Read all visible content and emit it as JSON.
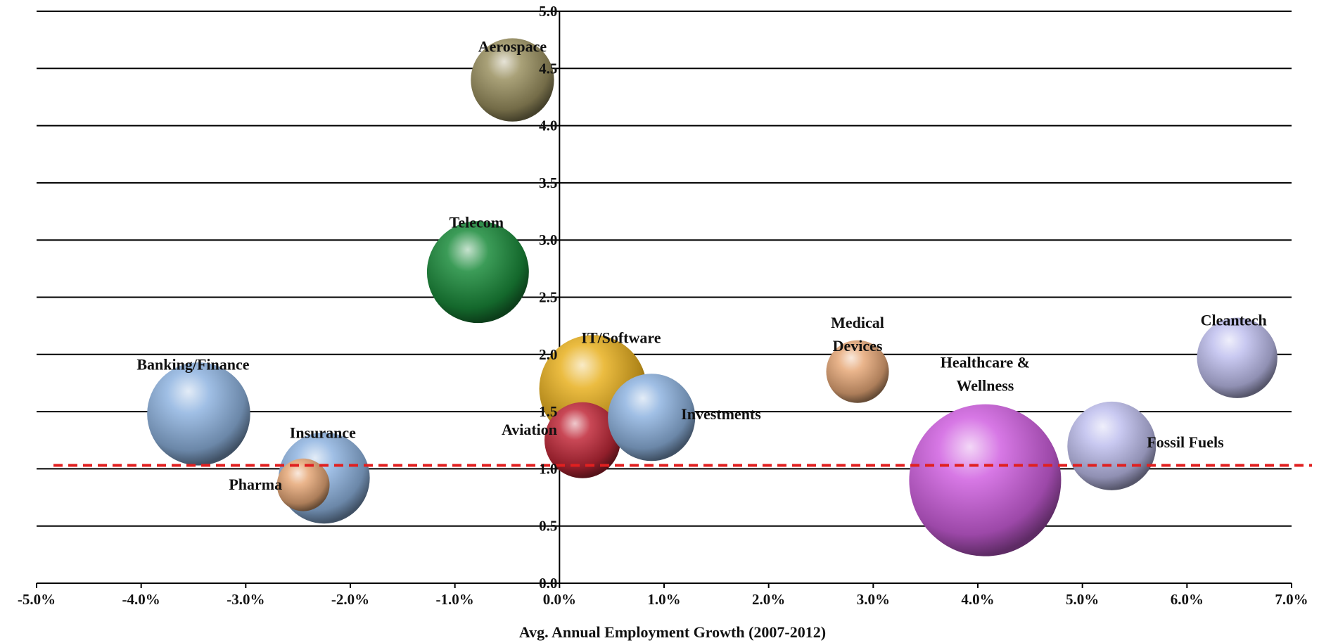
{
  "chart_data": {
    "type": "bubble",
    "title": "",
    "xlabel": "Avg. Annual Employment Growth (2007-2012)",
    "ylabel": "",
    "xlim": [
      -5.0,
      7.0
    ],
    "ylim": [
      0.0,
      5.0
    ],
    "x_ticks": [
      "-5.0%",
      "-4.0%",
      "-3.0%",
      "-2.0%",
      "-1.0%",
      "0.0%",
      "1.0%",
      "2.0%",
      "3.0%",
      "4.0%",
      "5.0%",
      "6.0%",
      "7.0%"
    ],
    "y_ticks": [
      "0.0",
      "0.5",
      "1.0",
      "1.5",
      "2.0",
      "2.5",
      "3.0",
      "3.5",
      "4.0",
      "4.5",
      "5.0"
    ],
    "grid": "horizontal",
    "reference_line": {
      "y": 1.03,
      "style": "dashed",
      "color": "#e02020"
    },
    "points": [
      {
        "name": "Aerospace",
        "x": -0.45,
        "y": 4.4,
        "size": 0.3,
        "color": "#9a9060"
      },
      {
        "name": "Telecom",
        "x": -0.78,
        "y": 2.72,
        "size": 0.45,
        "color": "#1a8a3a"
      },
      {
        "name": "Banking/Finance",
        "x": -3.45,
        "y": 1.48,
        "size": 0.46,
        "color": "#8fb4e0"
      },
      {
        "name": "Insurance",
        "x": -2.25,
        "y": 0.92,
        "size": 0.36,
        "color": "#8fb4e0"
      },
      {
        "name": "Pharma",
        "x": -2.45,
        "y": 0.86,
        "size": 0.12,
        "color": "#e6a878"
      },
      {
        "name": "IT/Software",
        "x": 0.32,
        "y": 1.7,
        "size": 0.5,
        "color": "#e8b020"
      },
      {
        "name": "Aviation",
        "x": 0.22,
        "y": 1.25,
        "size": 0.25,
        "color": "#c02838"
      },
      {
        "name": "Investments",
        "x": 0.88,
        "y": 1.45,
        "size": 0.33,
        "color": "#8fb4e0"
      },
      {
        "name": "Medical Devices",
        "x": 2.85,
        "y": 1.85,
        "size": 0.17,
        "color": "#e6a878"
      },
      {
        "name": "Healthcare & Wellness",
        "x": 4.07,
        "y": 0.9,
        "size": 1.0,
        "color": "#d060e0"
      },
      {
        "name": "Fossil Fuels",
        "x": 5.28,
        "y": 1.2,
        "size": 0.34,
        "color": "#c0c0ee"
      },
      {
        "name": "Cleantech",
        "x": 6.48,
        "y": 1.97,
        "size": 0.28,
        "color": "#c0c0ee"
      }
    ]
  }
}
